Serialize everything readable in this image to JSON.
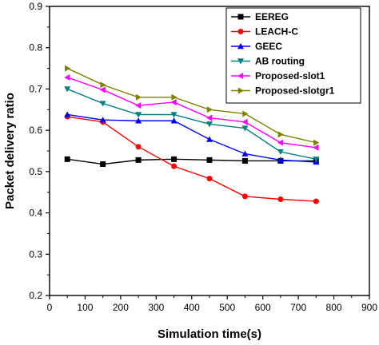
{
  "chart_data": {
    "type": "line",
    "title": "",
    "xlabel": "Simulation time(s)",
    "ylabel": "Packet delivery ratio",
    "xlim": [
      0,
      900
    ],
    "ylim": [
      0.2,
      0.9
    ],
    "x_ticks": [
      0,
      100,
      200,
      300,
      400,
      500,
      600,
      700,
      800,
      900
    ],
    "y_ticks": [
      0.2,
      0.3,
      0.4,
      0.5,
      0.6,
      0.7,
      0.8,
      0.9
    ],
    "x_tick_labels": [
      "0",
      "100",
      "200",
      "300",
      "400",
      "500",
      "600",
      "700",
      "800",
      "900"
    ],
    "y_tick_labels": [
      "0.2",
      "0.3",
      "0.4",
      "0.5",
      "0.6",
      "0.7",
      "0.8",
      "0.9"
    ],
    "grid": false,
    "legend_position": "top-right",
    "x": [
      50,
      150,
      250,
      350,
      450,
      550,
      650,
      750
    ],
    "series": [
      {
        "name": "EEREG",
        "color": "#000000",
        "marker": "square",
        "values": [
          0.53,
          0.518,
          0.528,
          0.53,
          0.528,
          0.526,
          0.526,
          0.526
        ]
      },
      {
        "name": "LEACH-C",
        "color": "#ff0000",
        "marker": "circle",
        "values": [
          0.633,
          0.62,
          0.56,
          0.513,
          0.483,
          0.44,
          0.433,
          0.428
        ]
      },
      {
        "name": "GEEC",
        "color": "#0000ff",
        "marker": "triangle-up",
        "values": [
          0.638,
          0.625,
          0.623,
          0.623,
          0.578,
          0.543,
          0.528,
          0.523
        ]
      },
      {
        "name": "AB routing",
        "color": "#008080",
        "marker": "triangle-down",
        "values": [
          0.7,
          0.665,
          0.638,
          0.638,
          0.615,
          0.605,
          0.548,
          0.53
        ]
      },
      {
        "name": "Proposed-slot1",
        "color": "#ff00ff",
        "marker": "triangle-left",
        "values": [
          0.728,
          0.698,
          0.66,
          0.668,
          0.63,
          0.62,
          0.57,
          0.558
        ]
      },
      {
        "name": "Proposed-slotgr1",
        "color": "#808000",
        "marker": "triangle-right",
        "values": [
          0.75,
          0.71,
          0.68,
          0.68,
          0.65,
          0.64,
          0.59,
          0.57
        ]
      }
    ]
  }
}
